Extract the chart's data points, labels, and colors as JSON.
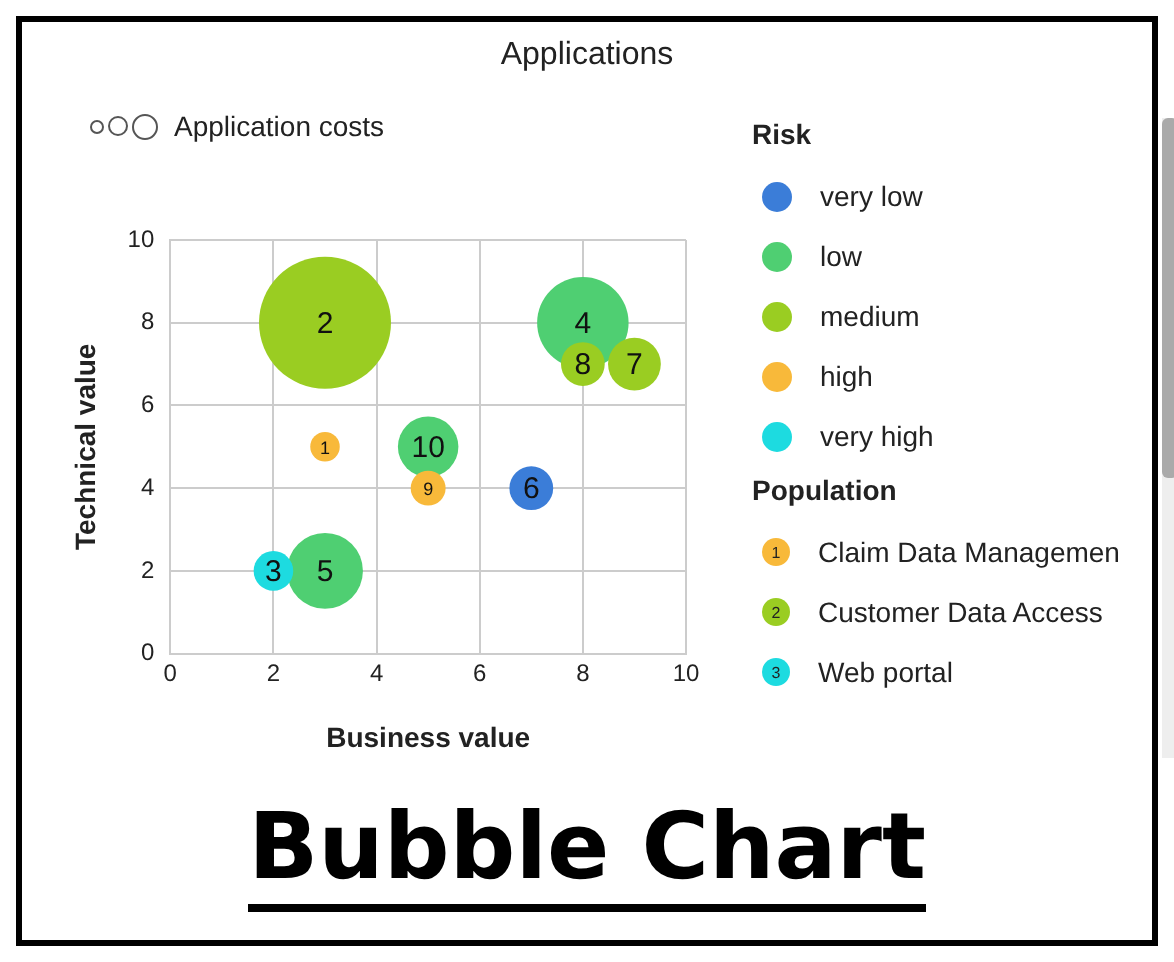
{
  "chart_data": {
    "type": "bubble",
    "title": "Applications",
    "xlabel": "Business value",
    "ylabel": "Technical value",
    "legend_title": "Risk",
    "xlim": [
      0,
      10
    ],
    "xticks": [
      0,
      2,
      4,
      6,
      8,
      10
    ],
    "ylim": [
      0,
      10
    ],
    "yticks": [
      0,
      2,
      4,
      6,
      8,
      10
    ],
    "grid": true,
    "legend": "right",
    "series": [
      {
        "name": "very low",
        "color": "#3b7dd8",
        "x": [
          7
        ],
        "values": [
          4
        ],
        "sizes": [
          0.11
        ]
      },
      {
        "name": "low",
        "color": "#4fcf72",
        "x": [
          8,
          3,
          5
        ],
        "values": [
          8,
          2,
          5
        ],
        "sizes": [
          0.48,
          0.33,
          0.21
        ]
      },
      {
        "name": "medium",
        "color": "#9acd22",
        "x": [
          3,
          9,
          8
        ],
        "values": [
          8,
          7,
          7
        ],
        "sizes": [
          1,
          0.16,
          0.11
        ]
      },
      {
        "name": "high",
        "color": "#f8b93a",
        "x": [
          3,
          5
        ],
        "values": [
          5,
          4
        ],
        "sizes": [
          0.05,
          0.07
        ]
      },
      {
        "name": "very high",
        "color": "#1ddbe0",
        "x": [
          2
        ],
        "values": [
          2
        ],
        "sizes": [
          0.09
        ]
      }
    ],
    "annotations": [
      "Application costs",
      "Population",
      "Claim Data Managemen",
      "Customer Data Access",
      "Web portal",
      "Bubble Chart",
      {
        "text": "1",
        "x": 3,
        "y": 5
      },
      {
        "text": "2",
        "x": 3,
        "y": 8
      },
      {
        "text": "3",
        "x": 2,
        "y": 2
      },
      {
        "text": "4",
        "x": 8,
        "y": 8
      },
      {
        "text": "5",
        "x": 3,
        "y": 2
      },
      {
        "text": "6",
        "x": 7,
        "y": 4
      },
      {
        "text": "7",
        "x": 9,
        "y": 7
      },
      {
        "text": "8",
        "x": 8,
        "y": 7
      },
      {
        "text": "9",
        "x": 5,
        "y": 4
      },
      {
        "text": "10",
        "x": 5,
        "y": 5
      }
    ]
  }
}
